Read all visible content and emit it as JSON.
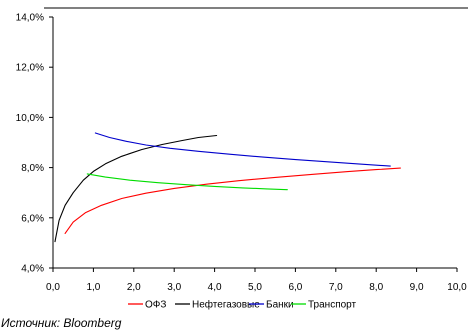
{
  "chart_data": {
    "type": "line",
    "xlim": [
      0,
      10
    ],
    "ylim": [
      4,
      14
    ],
    "x_ticks": [
      0,
      1,
      2,
      3,
      4,
      5,
      6,
      7,
      8,
      9,
      10
    ],
    "x_tick_labels": [
      "0,0",
      "1,0",
      "2,0",
      "3,0",
      "4,0",
      "5,0",
      "6,0",
      "7,0",
      "8,0",
      "9,0",
      "10,0"
    ],
    "y_ticks": [
      4,
      6,
      8,
      10,
      12,
      14
    ],
    "y_tick_labels": [
      "4,0%",
      "6,0%",
      "8,0%",
      "10,0%",
      "12,0%",
      "14,0%"
    ],
    "grid": false,
    "legend_position": "bottom",
    "series": [
      {
        "name": "ОФЗ",
        "color": "#ff0000",
        "x": [
          0.3,
          0.5,
          0.8,
          1.2,
          1.7,
          2.3,
          3.0,
          3.8,
          4.6,
          5.5,
          6.4,
          7.3,
          8.0,
          8.6
        ],
        "y": [
          5.38,
          5.83,
          6.2,
          6.5,
          6.77,
          6.98,
          7.17,
          7.34,
          7.48,
          7.61,
          7.73,
          7.84,
          7.92,
          7.98
        ]
      },
      {
        "name": "Нефтегазовые",
        "color": "#000000",
        "x": [
          0.05,
          0.15,
          0.3,
          0.5,
          0.75,
          1.0,
          1.3,
          1.7,
          2.2,
          2.7,
          3.2,
          3.6,
          4.05
        ],
        "y": [
          5.05,
          5.9,
          6.5,
          7.0,
          7.5,
          7.85,
          8.15,
          8.45,
          8.72,
          8.92,
          9.08,
          9.2,
          9.28
        ]
      },
      {
        "name": "Банки",
        "color": "#0000cc",
        "x": [
          1.05,
          1.4,
          1.8,
          2.3,
          2.9,
          3.6,
          4.4,
          5.2,
          6.0,
          6.8,
          7.6,
          8.35
        ],
        "y": [
          9.38,
          9.2,
          9.05,
          8.9,
          8.77,
          8.65,
          8.53,
          8.42,
          8.32,
          8.23,
          8.14,
          8.06
        ]
      },
      {
        "name": "Транспорт",
        "color": "#00dd00",
        "x": [
          0.85,
          1.3,
          1.9,
          2.6,
          3.3,
          4.0,
          4.7,
          5.3,
          5.8
        ],
        "y": [
          7.75,
          7.62,
          7.5,
          7.4,
          7.32,
          7.25,
          7.19,
          7.15,
          7.12
        ]
      }
    ]
  },
  "source": "Источник: Bloomberg"
}
